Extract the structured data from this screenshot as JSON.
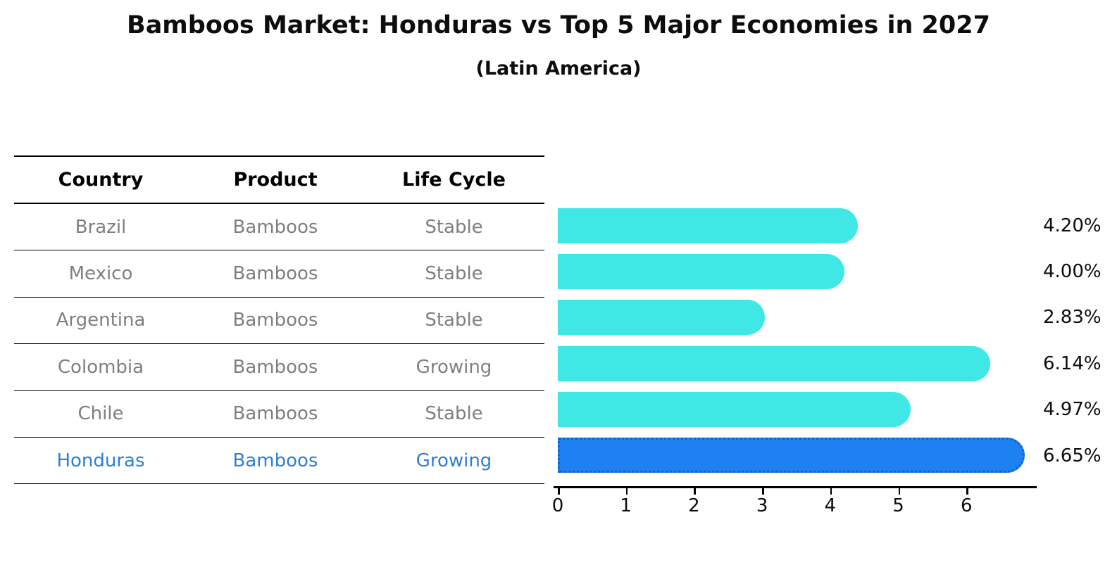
{
  "title": "Bamboos Market: Honduras vs Top 5 Major Economies in 2027",
  "subtitle": "(Latin America)",
  "table": {
    "headers": [
      "Country",
      "Product",
      "Life Cycle"
    ],
    "rows": [
      {
        "country": "Brazil",
        "product": "Bamboos",
        "life_cycle": "Stable",
        "highlight": false
      },
      {
        "country": "Mexico",
        "product": "Bamboos",
        "life_cycle": "Stable",
        "highlight": false
      },
      {
        "country": "Argentina",
        "product": "Bamboos",
        "life_cycle": "Stable",
        "highlight": false
      },
      {
        "country": "Colombia",
        "product": "Bamboos",
        "life_cycle": "Growing",
        "highlight": false
      },
      {
        "country": "Chile",
        "product": "Bamboos",
        "life_cycle": "Stable",
        "highlight": false
      },
      {
        "country": "Honduras",
        "product": "Bamboos",
        "life_cycle": "Growing",
        "highlight": true
      }
    ]
  },
  "chart_data": {
    "type": "bar",
    "orientation": "horizontal",
    "title": "Bamboos Market: Honduras vs Top 5 Major Economies in 2027",
    "subtitle": "(Latin America)",
    "categories": [
      "Brazil",
      "Mexico",
      "Argentina",
      "Colombia",
      "Chile",
      "Honduras"
    ],
    "values": [
      4.2,
      4.0,
      2.83,
      6.14,
      4.97,
      6.65
    ],
    "value_labels": [
      "4.20%",
      "4.00%",
      "2.83%",
      "6.14%",
      "4.97%",
      "6.65%"
    ],
    "x_ticks": [
      "0",
      "1",
      "2",
      "3",
      "4",
      "5",
      "6"
    ],
    "xlim": [
      0,
      7
    ],
    "xlabel": "",
    "ylabel": "",
    "grid": false,
    "legend": false,
    "highlight_index": 5,
    "colors": {
      "bar_default": "#40e8e5",
      "bar_highlight": "#1e81f2",
      "bar_highlight_border": "#1262c8",
      "highlight_text": "#2e7fd6",
      "table_text": "#7f7f7f",
      "text": "#0d0d0d"
    }
  }
}
